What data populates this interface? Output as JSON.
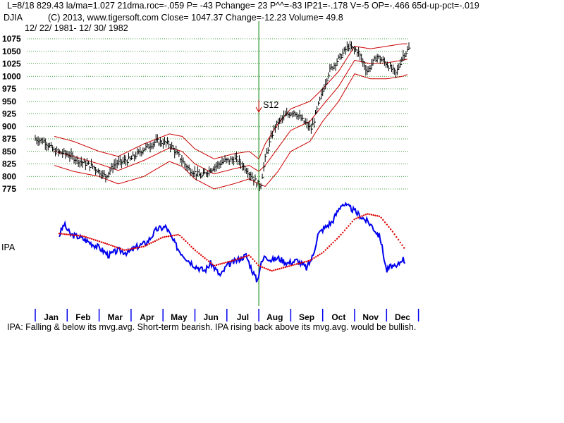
{
  "header": {
    "line1": "L=8/18  829.43  la/ma=1.027 21dma.roc=-.059 P= -43 Pchange=  23 P^^=-83 IP21=-.178 V=-5 OP=-.466 65d-up-pct=-.019",
    "symbol": "DJIA",
    "line2_rest": "(C) 2013, www.tigersoft.com     Close=  1047.37  Change=-12.23 Volume= 49.8",
    "line3": "12/ 22/ 1981- 12/ 30/ 1982"
  },
  "signal_label": "S12",
  "indicator_label": "IPA",
  "footer_note": "IPA: Falling & below its mvg.avg. Short-term bearish. IPA rising back above its mvg.avg. would be bullish.",
  "colors": {
    "price_bars": "#000000",
    "bands": "#cc0000",
    "ipa_line": "#0000ee",
    "ipa_mavg": "#dd0000",
    "signal_line": "#008000",
    "grid": "#008000"
  },
  "chart_data": [
    {
      "type": "line",
      "subtype": "ohlc-price-with-bands",
      "title": "DJIA",
      "ylim": [
        775,
        1075
      ],
      "y_ticks": [
        775,
        800,
        825,
        850,
        875,
        900,
        925,
        950,
        975,
        1000,
        1025,
        1050,
        1075
      ],
      "months": [
        "Jan",
        "Feb",
        "Mar",
        "Apr",
        "May",
        "Jun",
        "Jul",
        "Aug",
        "Sep",
        "Oct",
        "Nov",
        "Dec"
      ],
      "grid": "horizontal dotted",
      "close_anchor_points": {
        "x_month": [
          0,
          0.3,
          0.6,
          1.0,
          1.4,
          1.8,
          2.2,
          2.5,
          3.0,
          3.4,
          3.8,
          4.2,
          4.5,
          4.8,
          5.2,
          5.5,
          5.9,
          6.3,
          6.6,
          6.9,
          7.05,
          7.2,
          7.35,
          7.5,
          7.8,
          8.1,
          8.4,
          8.65,
          8.9,
          9.2,
          9.5,
          9.8,
          10.1,
          10.4,
          10.7,
          11.0,
          11.3,
          11.5,
          11.7
        ],
        "close": [
          875,
          870,
          850,
          845,
          830,
          820,
          800,
          825,
          835,
          855,
          870,
          865,
          840,
          815,
          800,
          815,
          830,
          835,
          815,
          790,
          780,
          835,
          870,
          900,
          920,
          930,
          910,
          895,
          950,
          1010,
          1035,
          1060,
          1050,
          1010,
          1040,
          1025,
          1005,
          1040,
          1055
        ]
      },
      "upper_band_anchor_points": {
        "x_month": [
          0.6,
          1.2,
          2.0,
          2.6,
          3.4,
          4.2,
          4.6,
          5.0,
          5.6,
          6.2,
          6.7,
          7.0,
          7.2,
          7.6,
          8.0,
          8.6,
          9.0,
          9.5,
          10.0,
          10.5,
          11.0,
          11.5,
          11.7
        ],
        "value": [
          880,
          870,
          850,
          840,
          865,
          885,
          880,
          855,
          835,
          845,
          850,
          835,
          865,
          905,
          935,
          950,
          975,
          1010,
          1060,
          1055,
          1060,
          1065,
          1065
        ]
      },
      "lower_band_anchor_points": {
        "x_month": [
          0.6,
          1.2,
          2.0,
          2.6,
          3.4,
          4.2,
          4.6,
          5.0,
          5.6,
          6.2,
          6.7,
          7.0,
          7.2,
          7.6,
          8.0,
          8.6,
          9.0,
          9.5,
          10.0,
          10.5,
          11.0,
          11.5,
          11.7
        ],
        "value": [
          822,
          810,
          800,
          785,
          800,
          830,
          820,
          795,
          775,
          785,
          795,
          785,
          780,
          810,
          850,
          870,
          910,
          950,
          1005,
          995,
          995,
          1000,
          1005
        ]
      },
      "middle_band_anchor_points": {
        "x_month": [
          0.6,
          1.2,
          2.0,
          2.6,
          3.4,
          4.2,
          4.6,
          5.0,
          5.6,
          6.2,
          6.7,
          7.0,
          7.2,
          7.6,
          8.0,
          8.6,
          9.0,
          9.5,
          10.0,
          10.5,
          11.0,
          11.5,
          11.7
        ],
        "value": [
          850,
          840,
          825,
          812,
          832,
          857,
          850,
          825,
          805,
          815,
          822,
          810,
          822,
          857,
          892,
          910,
          942,
          980,
          1032,
          1025,
          1027,
          1032,
          1035
        ]
      },
      "annotations": [
        {
          "text": "S12",
          "x_month": 7.0,
          "marker": "down-arrow"
        }
      ],
      "signal_x_month": 7.0
    },
    {
      "type": "line",
      "title": "IPA",
      "series": [
        {
          "name": "IPA",
          "x_month": [
            0.75,
            0.9,
            1.1,
            1.4,
            1.7,
            2.0,
            2.3,
            2.6,
            2.9,
            3.2,
            3.5,
            3.8,
            4.1,
            4.3,
            4.5,
            4.8,
            5.0,
            5.3,
            5.5,
            5.8,
            6.0,
            6.3,
            6.6,
            6.8,
            6.95,
            7.05,
            7.2,
            7.4,
            7.6,
            7.9,
            8.2,
            8.5,
            8.7,
            8.85,
            9.0,
            9.3,
            9.6,
            9.9,
            10.2,
            10.5,
            10.8,
            11.0,
            11.15,
            11.3,
            11.5,
            11.6
          ],
          "value": [
            0.33,
            0.55,
            0.35,
            0.3,
            0.2,
            0.1,
            -0.05,
            0.05,
            0.0,
            0.12,
            0.2,
            0.45,
            0.5,
            0.25,
            0.05,
            -0.15,
            -0.25,
            -0.35,
            -0.2,
            -0.45,
            -0.25,
            -0.15,
            -0.05,
            -0.35,
            -0.55,
            -0.25,
            -0.05,
            -0.15,
            -0.1,
            -0.2,
            -0.15,
            -0.3,
            -0.05,
            0.35,
            0.45,
            0.6,
            0.95,
            0.85,
            0.7,
            0.55,
            0.3,
            -0.35,
            -0.25,
            -0.3,
            -0.1,
            -0.2
          ]
        },
        {
          "name": "mvg.avg",
          "style": "dotted",
          "x_month": [
            0.75,
            1.5,
            2.2,
            2.8,
            3.4,
            4.0,
            4.5,
            5.0,
            5.6,
            6.2,
            6.7,
            7.0,
            7.4,
            8.0,
            8.6,
            9.0,
            9.5,
            10.0,
            10.4,
            10.8,
            11.2,
            11.6
          ],
          "value": [
            0.37,
            0.32,
            0.18,
            0.05,
            0.12,
            0.3,
            0.35,
            0.05,
            -0.25,
            -0.15,
            -0.05,
            -0.25,
            -0.35,
            -0.25,
            -0.15,
            0.0,
            0.3,
            0.65,
            0.75,
            0.7,
            0.4,
            0.05
          ]
        }
      ]
    }
  ]
}
